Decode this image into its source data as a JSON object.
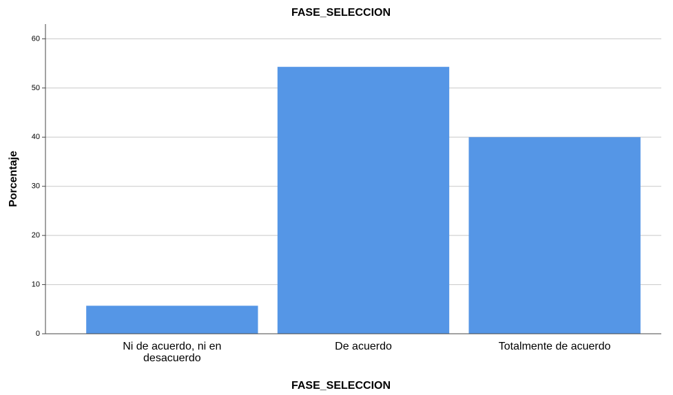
{
  "chart_data": {
    "type": "bar",
    "title": "FASE_SELECCION",
    "x_label": "FASE_SELECCION",
    "y_label": "Porcentaje",
    "categories": [
      "Ni de acuerdo, ni en desacuerdo",
      "De acuerdo",
      "Totalmente de acuerdo"
    ],
    "values": [
      5.7,
      54.3,
      40.0
    ],
    "color": "#5596e6",
    "ylim": [
      0,
      63
    ],
    "yticks": [
      0,
      10,
      20,
      30,
      40,
      50,
      60
    ],
    "grid": true
  }
}
